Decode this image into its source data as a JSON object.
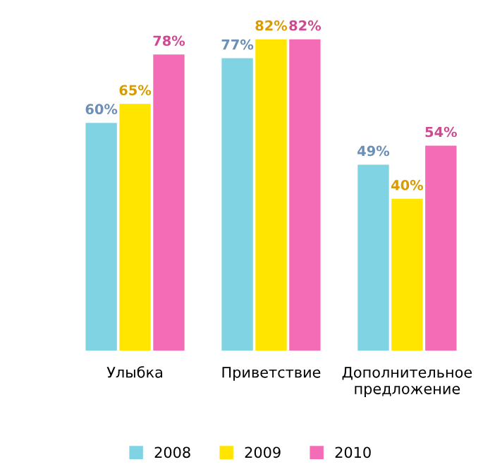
{
  "chart_data": {
    "type": "bar",
    "categories": [
      "Улыбка",
      "Приветствие",
      "Дополнительное\nпредложение"
    ],
    "series": [
      {
        "name": "2008",
        "color": "#7fd3e3",
        "values": [
          60,
          77,
          49
        ],
        "value_labels": [
          "60%",
          "77%",
          "49%"
        ]
      },
      {
        "name": "2009",
        "color": "#ffe500",
        "values": [
          65,
          82,
          40
        ],
        "value_labels": [
          "65%",
          "82%",
          "40%"
        ]
      },
      {
        "name": "2010",
        "color": "#f46cb5",
        "values": [
          78,
          82,
          54
        ],
        "value_labels": [
          "78%",
          "82%",
          "54%"
        ]
      }
    ],
    "legend": "bottom",
    "grid": false
  }
}
